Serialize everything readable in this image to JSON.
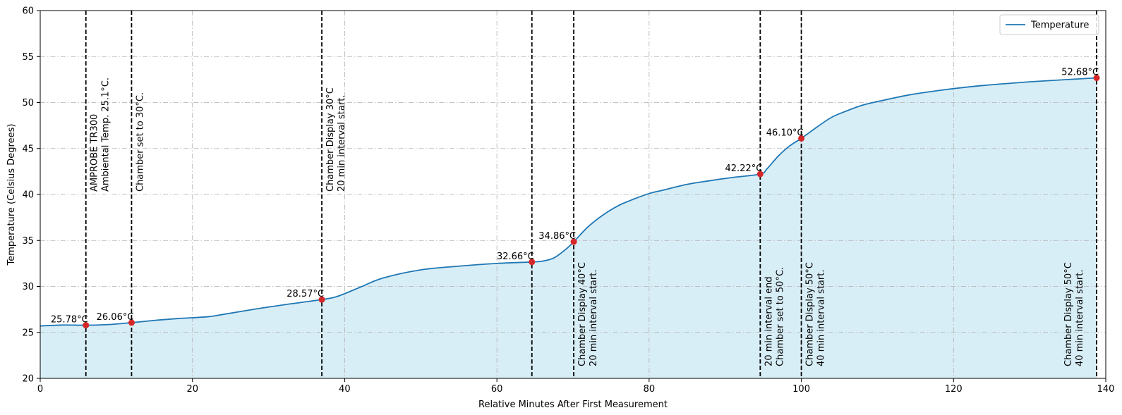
{
  "chart_data": {
    "type": "line",
    "title": "",
    "xlabel": "Relative Minutes After First Measurement",
    "ylabel": "Temperature (Celsius Degrees)",
    "xlim": [
      0,
      140
    ],
    "ylim": [
      20,
      60
    ],
    "xticks": [
      0,
      20,
      40,
      60,
      80,
      100,
      120,
      140
    ],
    "yticks": [
      20,
      25,
      30,
      35,
      40,
      45,
      50,
      55,
      60
    ],
    "grid": true,
    "legend": {
      "position": "top-right",
      "entries": [
        "Temperature"
      ]
    },
    "colors": {
      "line": "#1f77b4",
      "fill": "#d8eef7",
      "marker": "#d62728",
      "vline": "#000000",
      "grid": "#b0b0b0"
    },
    "series": [
      {
        "name": "Temperature",
        "x": [
          0,
          3,
          6,
          9,
          12,
          15,
          18,
          22,
          24,
          28,
          32,
          37,
          39,
          42,
          45,
          50,
          55,
          60,
          64.6,
          66,
          67.5,
          69,
          70.1,
          72,
          74,
          76,
          78,
          80,
          82,
          85,
          88,
          91,
          94.6,
          95.5,
          97,
          98.5,
          100,
          102,
          104,
          106,
          108,
          110,
          114,
          118,
          122,
          126,
          130,
          134,
          138.8
        ],
        "y": [
          25.7,
          25.8,
          25.78,
          25.85,
          26.06,
          26.3,
          26.5,
          26.7,
          26.95,
          27.5,
          28,
          28.57,
          28.9,
          29.9,
          30.9,
          31.8,
          32.2,
          32.5,
          32.66,
          32.75,
          33.1,
          34,
          34.86,
          36.5,
          37.8,
          38.8,
          39.5,
          40.1,
          40.5,
          41.1,
          41.5,
          41.85,
          42.22,
          42.8,
          44.2,
          45.3,
          46.1,
          47.3,
          48.4,
          49.1,
          49.7,
          50.1,
          50.8,
          51.3,
          51.7,
          52,
          52.25,
          52.45,
          52.68
        ]
      }
    ],
    "points": [
      {
        "x": 6,
        "y": 25.78,
        "label": "25.78°C"
      },
      {
        "x": 12,
        "y": 26.06,
        "label": "26.06°C"
      },
      {
        "x": 37,
        "y": 28.57,
        "label": "28.57°C"
      },
      {
        "x": 64.6,
        "y": 32.66,
        "label": "32.66°C"
      },
      {
        "x": 70.1,
        "y": 34.86,
        "label": "34.86°C"
      },
      {
        "x": 94.6,
        "y": 42.22,
        "label": "42.22°C"
      },
      {
        "x": 100,
        "y": 46.1,
        "label": "46.10°C"
      },
      {
        "x": 138.8,
        "y": 52.68,
        "label": "52.68°C"
      }
    ],
    "vlines": [
      {
        "x": 6,
        "lines": [
          "AMPROBE TR300",
          "Ambiental Temp. 25.1°C."
        ],
        "anchor_y": 40,
        "align": "start"
      },
      {
        "x": 12,
        "lines": [
          "Chamber set to 30°C."
        ],
        "anchor_y": 40,
        "align": "start"
      },
      {
        "x": 37,
        "lines": [
          "Chamber Display 30°C",
          "20 min interval start."
        ],
        "anchor_y": 40,
        "align": "start"
      },
      {
        "x": 64.6,
        "lines": [],
        "anchor_y": 21,
        "align": "start"
      },
      {
        "x": 70.1,
        "lines": [
          "Chamber Display 40°C",
          "20 min interval start."
        ],
        "anchor_y": 21,
        "align": "start"
      },
      {
        "x": 94.6,
        "lines": [
          "20 min interval end",
          "Chamber set to 50°C."
        ],
        "anchor_y": 21,
        "align": "start"
      },
      {
        "x": 100,
        "lines": [
          "Chamber Display 50°C",
          "40 min interval start."
        ],
        "anchor_y": 21,
        "align": "start"
      },
      {
        "x": 138.8,
        "lines": [
          "Chamber Display 50°C",
          "40 min interval start."
        ],
        "anchor_y": 21,
        "align": "before"
      }
    ]
  }
}
